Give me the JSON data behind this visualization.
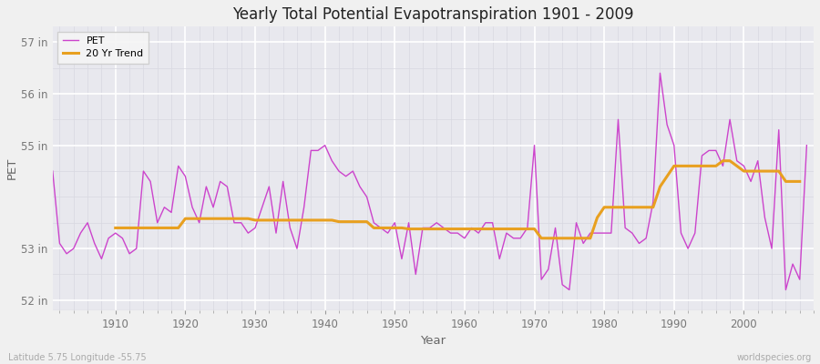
{
  "title": "Yearly Total Potential Evapotranspiration 1901 - 2009",
  "xlabel": "Year",
  "ylabel": "PET",
  "subtitle": "Latitude 5.75 Longitude -55.75",
  "watermark": "worldspecies.org",
  "ylim": [
    51.8,
    57.3
  ],
  "yticks": [
    52,
    53,
    55,
    56,
    57
  ],
  "ytick_labels": [
    "52 in",
    "53 in",
    "55 in",
    "56 in",
    "57 in"
  ],
  "xlim": [
    1901,
    2010
  ],
  "xticks": [
    1910,
    1920,
    1930,
    1940,
    1950,
    1960,
    1970,
    1980,
    1990,
    2000
  ],
  "pet_color": "#cc44cc",
  "trend_color": "#e8a020",
  "fig_bg": "#f0f0f0",
  "plot_bg": "#e8e8ee",
  "grid_major_color": "#ffffff",
  "grid_minor_color": "#d8d8e0",
  "pet_label": "PET",
  "trend_label": "20 Yr Trend",
  "years": [
    1901,
    1902,
    1903,
    1904,
    1905,
    1906,
    1907,
    1908,
    1909,
    1910,
    1911,
    1912,
    1913,
    1914,
    1915,
    1916,
    1917,
    1918,
    1919,
    1920,
    1921,
    1922,
    1923,
    1924,
    1925,
    1926,
    1927,
    1928,
    1929,
    1930,
    1931,
    1932,
    1933,
    1934,
    1935,
    1936,
    1937,
    1938,
    1939,
    1940,
    1941,
    1942,
    1943,
    1944,
    1945,
    1946,
    1947,
    1948,
    1949,
    1950,
    1951,
    1952,
    1953,
    1954,
    1955,
    1956,
    1957,
    1958,
    1959,
    1960,
    1961,
    1962,
    1963,
    1964,
    1965,
    1966,
    1967,
    1968,
    1969,
    1970,
    1971,
    1972,
    1973,
    1974,
    1975,
    1976,
    1977,
    1978,
    1979,
    1980,
    1981,
    1982,
    1983,
    1984,
    1985,
    1986,
    1987,
    1988,
    1989,
    1990,
    1991,
    1992,
    1993,
    1994,
    1995,
    1996,
    1997,
    1998,
    1999,
    2000,
    2001,
    2002,
    2003,
    2004,
    2005,
    2006,
    2007,
    2008,
    2009
  ],
  "pet_values": [
    54.5,
    53.1,
    52.9,
    53.0,
    53.3,
    53.5,
    53.1,
    52.8,
    53.2,
    53.3,
    53.2,
    52.9,
    53.0,
    54.5,
    54.3,
    53.5,
    53.8,
    53.7,
    54.6,
    54.4,
    53.8,
    53.5,
    54.2,
    53.8,
    54.3,
    54.2,
    53.5,
    53.5,
    53.3,
    53.4,
    53.8,
    54.2,
    53.3,
    54.3,
    53.4,
    53.0,
    53.8,
    54.9,
    54.9,
    55.0,
    54.7,
    54.5,
    54.4,
    54.5,
    54.2,
    54.0,
    53.5,
    53.4,
    53.3,
    53.5,
    52.8,
    53.5,
    52.5,
    53.4,
    53.4,
    53.5,
    53.4,
    53.3,
    53.3,
    53.2,
    53.4,
    53.3,
    53.5,
    53.5,
    52.8,
    53.3,
    53.2,
    53.2,
    53.4,
    55.0,
    52.4,
    52.6,
    53.4,
    52.3,
    52.2,
    53.5,
    53.1,
    53.3,
    53.3,
    53.3,
    53.3,
    55.5,
    53.4,
    53.3,
    53.1,
    53.2,
    53.9,
    56.4,
    55.4,
    55.0,
    53.3,
    53.0,
    53.3,
    54.8,
    54.9,
    54.9,
    54.6,
    55.5,
    54.7,
    54.6,
    54.3,
    54.7,
    53.6,
    53.0,
    55.3,
    52.2,
    52.7,
    52.4,
    55.0
  ],
  "trend_values": [
    null,
    null,
    null,
    null,
    null,
    null,
    null,
    null,
    null,
    53.4,
    53.4,
    53.4,
    53.4,
    53.4,
    53.4,
    53.4,
    53.4,
    53.4,
    53.4,
    53.58,
    53.58,
    53.58,
    53.58,
    53.58,
    53.58,
    53.58,
    53.58,
    53.58,
    53.58,
    53.55,
    53.55,
    53.55,
    53.55,
    53.55,
    53.55,
    53.55,
    53.55,
    53.55,
    53.55,
    53.55,
    53.55,
    53.52,
    53.52,
    53.52,
    53.52,
    53.52,
    53.4,
    53.4,
    53.4,
    53.4,
    53.4,
    53.38,
    53.38,
    53.38,
    53.38,
    53.38,
    53.38,
    53.38,
    53.38,
    53.38,
    53.38,
    53.38,
    53.38,
    53.38,
    53.38,
    53.38,
    53.38,
    53.38,
    53.38,
    53.38,
    53.2,
    53.2,
    53.2,
    53.2,
    53.2,
    53.2,
    53.2,
    53.2,
    53.6,
    53.8,
    53.8,
    53.8,
    53.8,
    53.8,
    53.8,
    53.8,
    53.8,
    54.2,
    54.4,
    54.6,
    54.6,
    54.6,
    54.6,
    54.6,
    54.6,
    54.6,
    54.7,
    54.7,
    54.6,
    54.5,
    54.5,
    54.5,
    54.5,
    54.5,
    54.5,
    54.3,
    54.3,
    54.3,
    null
  ]
}
